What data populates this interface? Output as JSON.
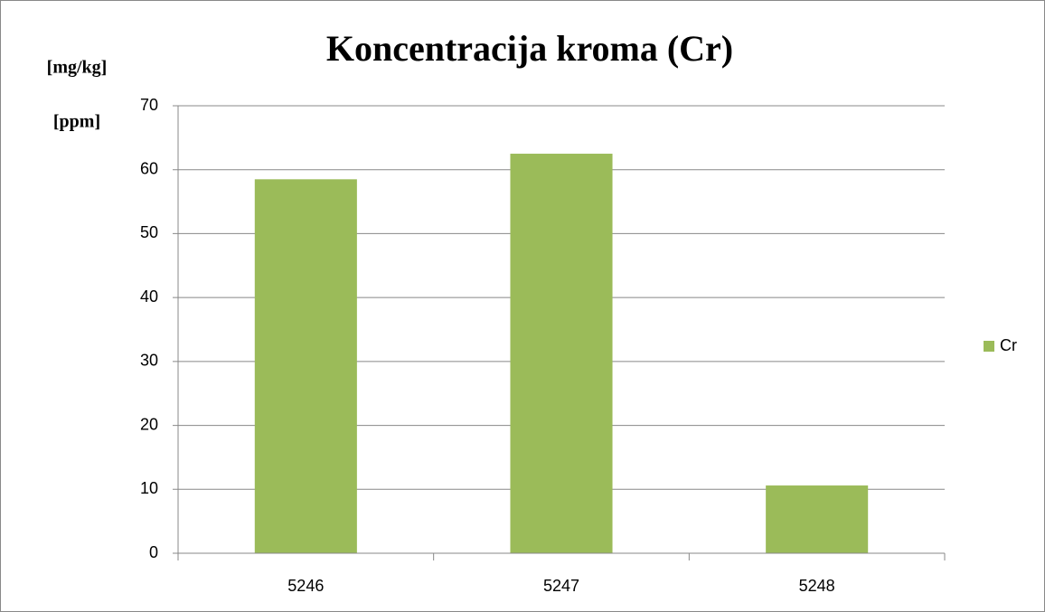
{
  "chart_data": {
    "type": "bar",
    "title": "Koncentracija kroma (Cr)",
    "ylabel_lines": [
      "[mg/kg]",
      "[ppm]"
    ],
    "categories": [
      "5246",
      "5247",
      "5248"
    ],
    "series": [
      {
        "name": "Cr",
        "color": "#9bbb59",
        "values": [
          58.5,
          62.5,
          10.6
        ]
      }
    ],
    "ylim": [
      0,
      70
    ],
    "yticks": [
      0,
      10,
      20,
      30,
      40,
      50,
      60,
      70
    ],
    "grid": true,
    "legend": "right"
  }
}
